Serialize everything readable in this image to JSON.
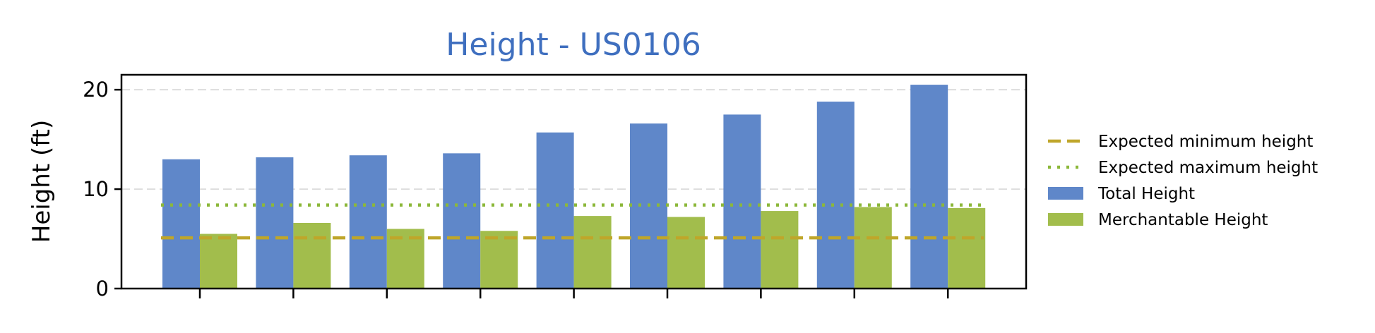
{
  "chart_data": {
    "type": "bar",
    "title": "Height - US0106",
    "xlabel": "",
    "ylabel": "Height (ft)",
    "ylim": [
      0,
      21.5
    ],
    "yticks": [
      0,
      10,
      20
    ],
    "grid": "horizontal dashed",
    "categories": [
      "",
      "",
      "",
      "",
      "",
      "",
      "",
      "",
      ""
    ],
    "series": [
      {
        "name": "Total Height",
        "color": "#5f87c9",
        "values": [
          13.0,
          13.2,
          13.4,
          13.6,
          15.7,
          16.6,
          17.5,
          18.8,
          20.5
        ]
      },
      {
        "name": "Merchantable Height",
        "color": "#a2bd4c",
        "values": [
          5.5,
          6.6,
          6.0,
          5.8,
          7.3,
          7.2,
          7.8,
          8.2,
          8.1
        ]
      }
    ],
    "reference_lines": [
      {
        "name": "Expected minimum height",
        "value": 5.1,
        "style": "dashed",
        "color": "#bfa62a"
      },
      {
        "name": "Expected maximum height",
        "value": 8.4,
        "style": "dotted",
        "color": "#8cb83a"
      }
    ],
    "legend": {
      "placement": "right",
      "entries": [
        "Expected minimum height",
        "Expected maximum height",
        "Total Height",
        "Merchantable Height"
      ]
    }
  }
}
